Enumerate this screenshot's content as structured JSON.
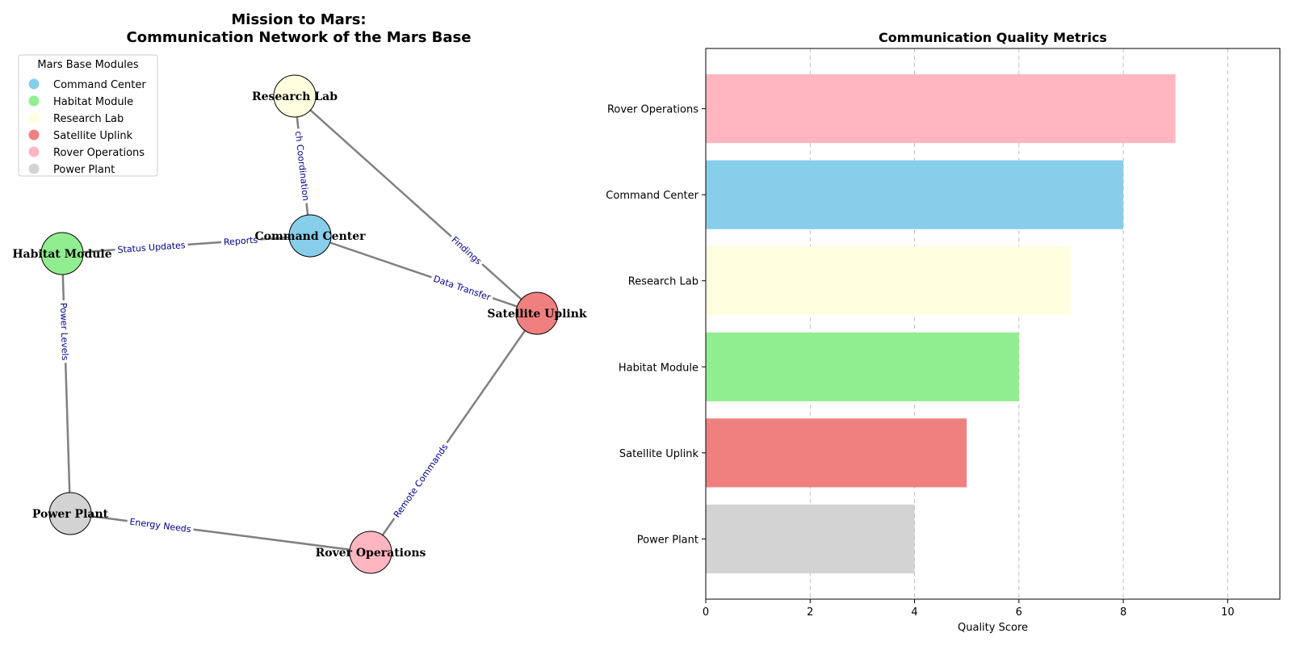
{
  "chart_data": [
    {
      "type": "network",
      "title": "Mission to Mars:\nCommunication Network of the Mars Base",
      "legend": {
        "title": "Mars Base Modules",
        "placement": "top-left",
        "entries": [
          {
            "label": "Command Center",
            "color": "#87CEEB"
          },
          {
            "label": "Habitat Module",
            "color": "#90EE90"
          },
          {
            "label": "Research Lab",
            "color": "#FFFFE0"
          },
          {
            "label": "Satellite Uplink",
            "color": "#F08080"
          },
          {
            "label": "Rover Operations",
            "color": "#FFB6C1"
          },
          {
            "label": "Power Plant",
            "color": "#D3D3D3"
          }
        ]
      },
      "nodes": [
        {
          "id": "Command Center",
          "label": "Command Center",
          "color": "#87CEEB"
        },
        {
          "id": "Habitat Module",
          "label": "Habitat Module",
          "color": "#90EE90"
        },
        {
          "id": "Research Lab",
          "label": "Research Lab",
          "color": "#FFFFE0"
        },
        {
          "id": "Satellite Uplink",
          "label": "Satellite Uplink",
          "color": "#F08080"
        },
        {
          "id": "Rover Operations",
          "label": "Rover Operations",
          "color": "#FFB6C1"
        },
        {
          "id": "Power Plant",
          "label": "Power Plant",
          "color": "#D3D3D3"
        }
      ],
      "edges": [
        {
          "source": "Command Center",
          "target": "Habitat Module",
          "label": "Status Updates"
        },
        {
          "source": "Habitat Module",
          "target": "Command Center",
          "label": "Reports"
        },
        {
          "source": "Research Lab",
          "target": "Command Center",
          "label": "ch Coordination"
        },
        {
          "source": "Research Lab",
          "target": "Satellite Uplink",
          "label": "Findings"
        },
        {
          "source": "Command Center",
          "target": "Satellite Uplink",
          "label": "Data Transfer"
        },
        {
          "source": "Habitat Module",
          "target": "Power Plant",
          "label": "Power Levels"
        },
        {
          "source": "Satellite Uplink",
          "target": "Rover Operations",
          "label": "Remote Commands"
        },
        {
          "source": "Power Plant",
          "target": "Rover Operations",
          "label": "Energy Needs"
        }
      ]
    },
    {
      "type": "bar",
      "orientation": "horizontal",
      "title": "Communication Quality Metrics",
      "xlabel": "Quality Score",
      "ylabel": "",
      "xlim": [
        0,
        11
      ],
      "xticks": [
        0,
        2,
        4,
        6,
        8,
        10
      ],
      "grid": "x-dashed",
      "categories": [
        "Rover Operations",
        "Command Center",
        "Research Lab",
        "Habitat Module",
        "Satellite Uplink",
        "Power Plant"
      ],
      "values": [
        9,
        8,
        7,
        6,
        5,
        4
      ],
      "colors": [
        "#FFB6C1",
        "#87CEEB",
        "#FFFFE0",
        "#90EE90",
        "#F08080",
        "#D3D3D3"
      ]
    }
  ]
}
